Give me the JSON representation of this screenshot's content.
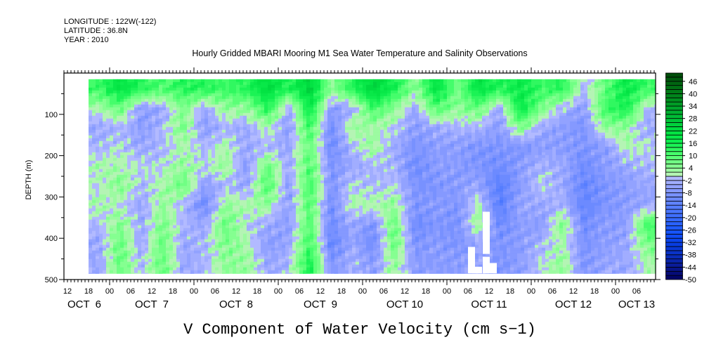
{
  "header": {
    "longitude": "LONGITUDE : 122W(-122)",
    "latitude": "LATITUDE : 36.8N",
    "year": "YEAR : 2010"
  },
  "chart_data": {
    "type": "heatmap",
    "title": "Hourly Gridded MBARI Mooring M1 Sea Water Temperature and Salinity Observations",
    "variable_label": "V Component of Water Velocity (cm s−1)",
    "ylabel": "DEPTH (m)",
    "x_units": "hours since 2010-10-06 00:00",
    "xlim": [
      11,
      179.4
    ],
    "ylim": [
      0,
      500
    ],
    "y_inverted": true,
    "x_ticks": [
      12,
      18,
      24,
      30,
      36,
      42,
      48,
      54,
      60,
      66,
      72,
      78,
      84,
      90,
      96,
      102,
      108,
      114,
      120,
      126,
      132,
      138,
      144,
      150,
      156,
      162,
      168,
      174
    ],
    "x_tick_labels": [
      "12",
      "18",
      "00",
      "06",
      "12",
      "18",
      "00",
      "06",
      "12",
      "18",
      "00",
      "06",
      "12",
      "18",
      "00",
      "06",
      "12",
      "18",
      "00",
      "06",
      "12",
      "18",
      "00",
      "06",
      "12",
      "18",
      "00",
      "06"
    ],
    "date_labels": [
      {
        "label": "OCT  6",
        "hour": 12
      },
      {
        "label": "OCT  7",
        "hour": 36
      },
      {
        "label": "OCT  8",
        "hour": 60
      },
      {
        "label": "OCT  9",
        "hour": 84
      },
      {
        "label": "OCT 10",
        "hour": 108
      },
      {
        "label": "OCT 11",
        "hour": 132
      },
      {
        "label": "OCT 12",
        "hour": 156
      },
      {
        "label": "OCT 13",
        "hour": 180
      }
    ],
    "y_ticks": [
      100,
      200,
      300,
      400,
      500
    ],
    "y_tick_labels": [
      "100",
      "200",
      "300",
      "400",
      "500"
    ],
    "time_start_hours": 18,
    "time_end_hours": 179.4,
    "time_step_hours": 6,
    "depth_start": 15,
    "depth_step": 47,
    "values_by_time": [
      [
        12,
        2,
        -4,
        -2,
        2,
        0,
        2,
        -2,
        -4,
        -4
      ],
      [
        20,
        8,
        -2,
        0,
        2,
        6,
        0,
        6,
        8,
        8
      ],
      [
        14,
        -6,
        -6,
        -4,
        0,
        -2,
        -4,
        -4,
        -4,
        -2
      ],
      [
        10,
        -4,
        -2,
        -2,
        0,
        2,
        4,
        6,
        8,
        8
      ],
      [
        14,
        6,
        6,
        2,
        4,
        8,
        -2,
        -2,
        -4,
        -4
      ],
      [
        14,
        -4,
        -6,
        -2,
        0,
        -6,
        -10,
        -4,
        -2,
        -2
      ],
      [
        12,
        4,
        -2,
        2,
        4,
        -2,
        4,
        8,
        6,
        4
      ],
      [
        14,
        4,
        -4,
        -4,
        -6,
        -4,
        2,
        0,
        2,
        4
      ],
      [
        22,
        14,
        2,
        -2,
        8,
        10,
        4,
        -4,
        -6,
        -4
      ],
      [
        14,
        -4,
        -6,
        -4,
        -4,
        -6,
        -6,
        -6,
        -4,
        -2
      ],
      [
        24,
        18,
        12,
        8,
        10,
        12,
        10,
        10,
        12,
        16
      ],
      [
        4,
        -6,
        -10,
        -10,
        -8,
        -8,
        -10,
        -10,
        -12,
        -8
      ],
      [
        14,
        -4,
        4,
        -2,
        -4,
        0,
        2,
        -4,
        -4,
        -2
      ],
      [
        24,
        12,
        2,
        4,
        -2,
        -2,
        2,
        -8,
        -10,
        -6
      ],
      [
        16,
        4,
        0,
        -4,
        -2,
        0,
        4,
        8,
        8,
        4
      ],
      [
        4,
        -4,
        -6,
        -8,
        -10,
        -8,
        -8,
        -10,
        -8,
        -6
      ],
      [
        20,
        10,
        -4,
        -6,
        -6,
        -8,
        -6,
        -8,
        -6,
        -6
      ],
      [
        6,
        4,
        -2,
        -6,
        -6,
        -6,
        -8,
        -8,
        -8,
        -6
      ],
      [
        20,
        8,
        -2,
        -8,
        -8,
        -4,
        2,
        4,
        -4,
        -4
      ],
      [
        14,
        -4,
        -6,
        -8,
        -10,
        -14,
        -14,
        -10,
        -8,
        -8
      ],
      [
        18,
        18,
        6,
        -8,
        -6,
        -6,
        -4,
        -6,
        -6,
        -6
      ],
      [
        12,
        6,
        -4,
        -6,
        -2,
        0,
        -4,
        -6,
        -2,
        0
      ],
      [
        14,
        -2,
        -6,
        -6,
        -4,
        -4,
        -2,
        6,
        2,
        4
      ],
      [
        -2,
        -6,
        -8,
        -8,
        -10,
        -12,
        -12,
        -10,
        -8,
        -8
      ],
      [
        8,
        12,
        4,
        -6,
        -6,
        -8,
        -8,
        -6,
        -6,
        -4
      ],
      [
        18,
        16,
        4,
        2,
        -4,
        -6,
        -6,
        -6,
        -4,
        -4
      ],
      [
        12,
        -2,
        -4,
        0,
        -2,
        -4,
        -4,
        12,
        6,
        2
      ]
    ],
    "missing_regions": [
      {
        "hours": [
          126,
          128
        ],
        "depth": [
          421,
          485
        ]
      },
      {
        "hours": [
          128,
          130
        ],
        "depth": [
          469,
          485
        ]
      },
      {
        "hours": [
          130.2,
          132.2
        ],
        "depth": [
          336,
          438
        ]
      },
      {
        "hours": [
          130.2,
          132.2
        ],
        "depth": [
          445,
          485
        ]
      },
      {
        "hours": [
          132.2,
          134.2
        ],
        "depth": [
          460,
          485
        ]
      }
    ],
    "colorbar": {
      "min": -50,
      "max": 50,
      "step": 2,
      "labels": [
        "46",
        "40",
        "34",
        "28",
        "22",
        "16",
        "10",
        "4",
        "-2",
        "-8",
        "-14",
        "-20",
        "-26",
        "-32",
        "-38",
        "-44",
        "-50"
      ],
      "label_values": [
        46,
        40,
        34,
        28,
        22,
        16,
        10,
        4,
        -2,
        -8,
        -14,
        -20,
        -26,
        -32,
        -38,
        -44,
        -50
      ],
      "anchors": [
        [
          -50,
          "#000060"
        ],
        [
          -44,
          "#0a1890"
        ],
        [
          -38,
          "#0a30c0"
        ],
        [
          -32,
          "#0840e8"
        ],
        [
          -26,
          "#1a58ff"
        ],
        [
          -20,
          "#3a6cff"
        ],
        [
          -14,
          "#5a80ff"
        ],
        [
          -8,
          "#7e94ff"
        ],
        [
          -4,
          "#98a6ff"
        ],
        [
          -1,
          "#b2baff"
        ],
        [
          1,
          "#b4f4b4"
        ],
        [
          4,
          "#90ff98"
        ],
        [
          10,
          "#50ff70"
        ],
        [
          16,
          "#10f050"
        ],
        [
          22,
          "#00e040"
        ],
        [
          28,
          "#00c038"
        ],
        [
          34,
          "#00a028"
        ],
        [
          40,
          "#008018"
        ],
        [
          46,
          "#006010"
        ],
        [
          50,
          "#004808"
        ]
      ]
    }
  }
}
